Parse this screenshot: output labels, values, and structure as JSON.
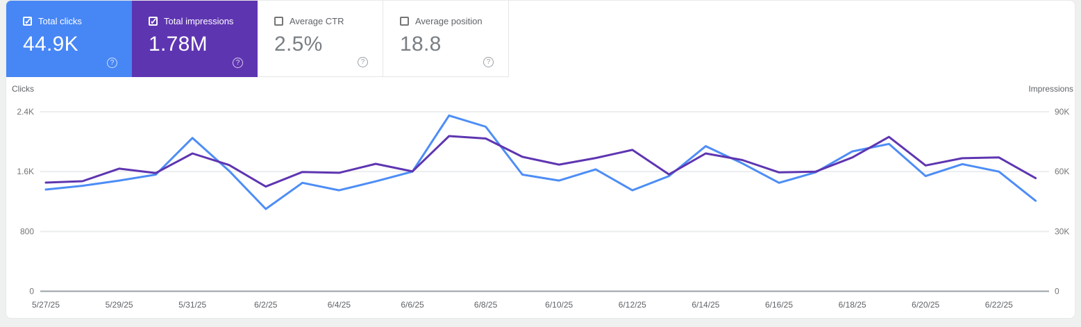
{
  "metrics": {
    "tiles": [
      {
        "label": "Total clicks",
        "value": "44.9K",
        "checked": true,
        "color": "#4786f5"
      },
      {
        "label": "Total impressions",
        "value": "1.78M",
        "checked": true,
        "color": "#5e35b1"
      },
      {
        "label": "Average CTR",
        "value": "2.5%",
        "checked": false,
        "color": null
      },
      {
        "label": "Average position",
        "value": "18.8",
        "checked": false,
        "color": null
      }
    ]
  },
  "chart_data": {
    "type": "line",
    "x": [
      "5/27/25",
      "5/28/25",
      "5/29/25",
      "5/30/25",
      "5/31/25",
      "6/1/25",
      "6/2/25",
      "6/3/25",
      "6/4/25",
      "6/5/25",
      "6/6/25",
      "6/7/25",
      "6/8/25",
      "6/9/25",
      "6/10/25",
      "6/11/25",
      "6/12/25",
      "6/13/25",
      "6/14/25",
      "6/15/25",
      "6/16/25",
      "6/17/25",
      "6/18/25",
      "6/19/25",
      "6/20/25",
      "6/21/25",
      "6/22/25",
      "6/23/25"
    ],
    "x_tick_labels": [
      "5/27/25",
      "5/29/25",
      "5/31/25",
      "6/2/25",
      "6/4/25",
      "6/6/25",
      "6/8/25",
      "6/10/25",
      "6/12/25",
      "6/14/25",
      "6/16/25",
      "6/18/25",
      "6/20/25",
      "6/22/25"
    ],
    "series": [
      {
        "name": "Clicks",
        "axis": "left",
        "color": "#4d8df6",
        "values": [
          1360,
          1410,
          1480,
          1560,
          2050,
          1610,
          1100,
          1450,
          1350,
          1470,
          1600,
          2350,
          2200,
          1560,
          1480,
          1630,
          1350,
          1540,
          1940,
          1710,
          1450,
          1590,
          1870,
          1970,
          1540,
          1700,
          1600,
          1210
        ]
      },
      {
        "name": "Impressions",
        "axis": "right",
        "color": "#5e35b1",
        "values": [
          54500,
          55200,
          61500,
          59300,
          69100,
          63300,
          52500,
          59800,
          59400,
          63900,
          60100,
          77800,
          76600,
          67400,
          63500,
          66800,
          70900,
          58600,
          69100,
          65800,
          59600,
          60000,
          67100,
          77400,
          63100,
          66700,
          67100,
          56700
        ]
      }
    ],
    "left_axis": {
      "title": "Clicks",
      "ticks": [
        "2.4K",
        "1.6K",
        "800",
        "0"
      ],
      "max": 2400,
      "min": 0
    },
    "right_axis": {
      "title": "Impressions",
      "ticks": [
        "90K",
        "60K",
        "30K",
        "0"
      ],
      "max": 90000,
      "min": 0
    },
    "grid": true,
    "legend": "none",
    "title": ""
  }
}
